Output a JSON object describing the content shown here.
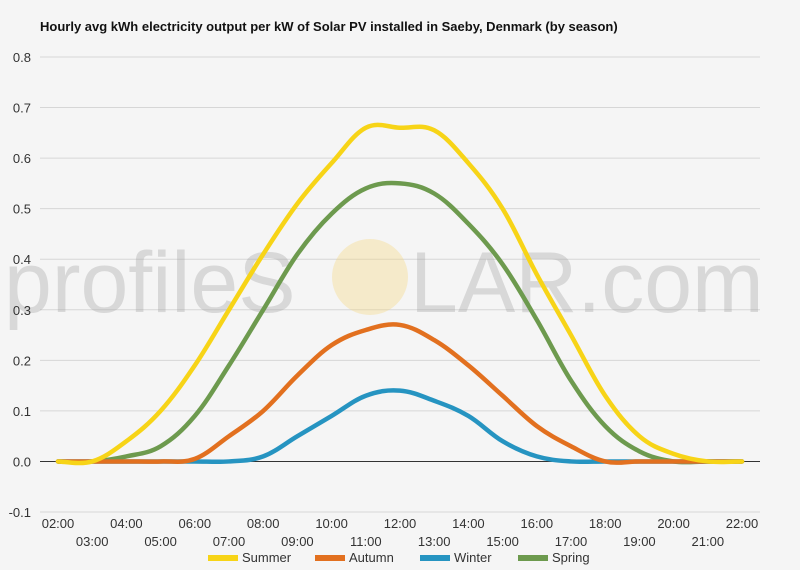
{
  "watermark": {
    "brand_left": "profile",
    "brand_right": "S",
    "brand_after_sun": "LAR.com",
    "sun_color": "#f5d77a"
  },
  "chart_data": {
    "type": "line",
    "title": "Hourly avg kWh electricity output per kW of Solar PV installed in Saeby, Denmark (by season)",
    "xlabel": "",
    "ylabel": "",
    "ylim": [
      -0.1,
      0.8
    ],
    "yticks": [
      -0.1,
      0.0,
      0.1,
      0.2,
      0.3,
      0.4,
      0.5,
      0.6,
      0.7,
      0.8
    ],
    "ytick_labels": [
      "-0.1",
      "0.0",
      "0.1",
      "0.2",
      "0.3",
      "0.4",
      "0.5",
      "0.6",
      "0.7",
      "0.8"
    ],
    "categories": [
      "02:00",
      "03:00",
      "04:00",
      "05:00",
      "06:00",
      "07:00",
      "08:00",
      "09:00",
      "10:00",
      "11:00",
      "12:00",
      "13:00",
      "14:00",
      "15:00",
      "16:00",
      "17:00",
      "18:00",
      "19:00",
      "20:00",
      "21:00",
      "22:00"
    ],
    "grid": true,
    "legend_position": "bottom",
    "series": [
      {
        "name": "Summer",
        "color": "#f7d417",
        "values": [
          0.0,
          0.0,
          0.04,
          0.1,
          0.19,
          0.3,
          0.41,
          0.51,
          0.59,
          0.66,
          0.66,
          0.655,
          0.59,
          0.5,
          0.37,
          0.25,
          0.13,
          0.05,
          0.015,
          0.0,
          0.0
        ]
      },
      {
        "name": "Autumn",
        "color": "#e2701f",
        "values": [
          0.0,
          0.0,
          0.0,
          0.0,
          0.005,
          0.05,
          0.1,
          0.17,
          0.23,
          0.26,
          0.27,
          0.24,
          0.19,
          0.13,
          0.07,
          0.03,
          0.0,
          0.0,
          0.0,
          0.0,
          0.0
        ]
      },
      {
        "name": "Winter",
        "color": "#2694c1",
        "values": [
          0.0,
          0.0,
          0.0,
          0.0,
          0.0,
          0.0,
          0.01,
          0.05,
          0.09,
          0.13,
          0.14,
          0.12,
          0.09,
          0.04,
          0.01,
          0.0,
          0.0,
          0.0,
          0.0,
          0.0,
          0.0
        ]
      },
      {
        "name": "Spring",
        "color": "#6d9a4e",
        "values": [
          0.0,
          0.0,
          0.01,
          0.03,
          0.09,
          0.19,
          0.3,
          0.41,
          0.49,
          0.54,
          0.55,
          0.53,
          0.47,
          0.39,
          0.28,
          0.16,
          0.07,
          0.02,
          0.0,
          0.0,
          0.0
        ]
      }
    ]
  }
}
